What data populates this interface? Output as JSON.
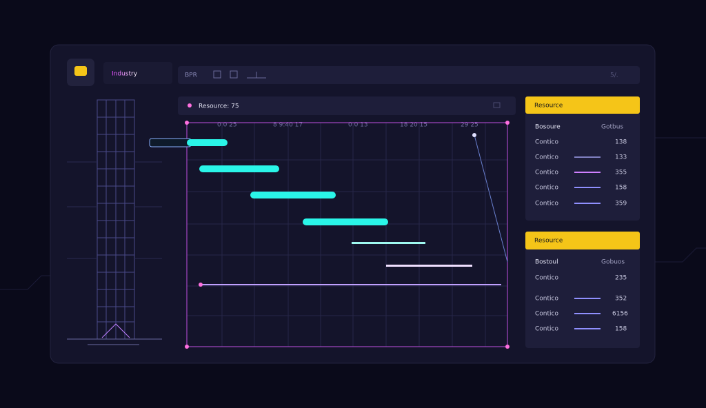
{
  "header": {
    "title": "Industry",
    "menu": "BPR",
    "status": "5/."
  },
  "gantt": {
    "title": "Resource: 75",
    "time_labels": [
      "0.0 25",
      "8 9:40 17",
      "0.0 13",
      "18 20 15",
      "29 25"
    ]
  },
  "panels": [
    {
      "title": "Resource",
      "columns": [
        "Bosoure",
        "Gotbus"
      ],
      "rows": [
        [
          "Contico",
          "138"
        ],
        [
          "Contico",
          "133"
        ],
        [
          "Contico",
          "355"
        ],
        [
          "Contico",
          "158"
        ],
        [
          "Contico",
          "359"
        ]
      ]
    },
    {
      "title": "Resource",
      "columns": [
        "Bostoul",
        "Gobuos"
      ],
      "rows": [
        [
          "Contico",
          "235"
        ],
        [
          "Contico",
          "352"
        ],
        [
          "Contico",
          "6156"
        ],
        [
          "Contico",
          "158"
        ]
      ]
    }
  ]
}
